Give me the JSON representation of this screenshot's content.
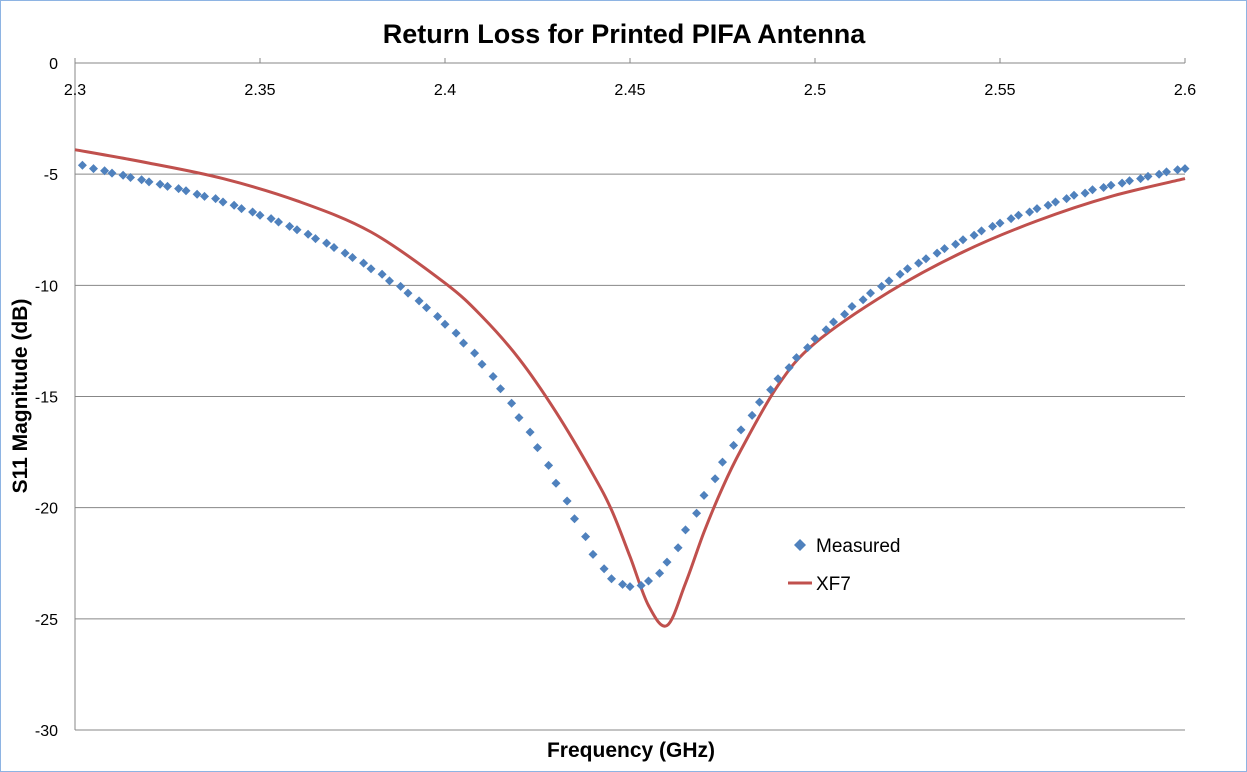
{
  "chart_data": {
    "type": "scatter",
    "title": "Return Loss for Printed PIFA Antenna",
    "xlabel": "Frequency (GHz)",
    "ylabel": "S11 Magnitude (dB)",
    "xlim": [
      2.3,
      2.6
    ],
    "ylim": [
      -30,
      0
    ],
    "x_ticks": [
      2.3,
      2.35,
      2.4,
      2.45,
      2.5,
      2.55,
      2.6
    ],
    "x_tick_labels": [
      "2.3",
      "2.35",
      "2.4",
      "2.45",
      "2.5",
      "2.55",
      "2.6"
    ],
    "y_ticks": [
      0,
      -5,
      -10,
      -15,
      -20,
      -25,
      -30
    ],
    "y_tick_labels": [
      "0",
      "-5",
      "-10",
      "-15",
      "-20",
      "-25",
      "-30"
    ],
    "x_axis_position": "top",
    "grid": "horizontal",
    "legend_position": "right",
    "series": [
      {
        "name": "Measured",
        "kind": "scatter",
        "marker": "diamond",
        "color": "#4f81bd",
        "x": [
          2.302,
          2.305,
          2.308,
          2.31,
          2.313,
          2.315,
          2.318,
          2.32,
          2.323,
          2.325,
          2.328,
          2.33,
          2.333,
          2.335,
          2.338,
          2.34,
          2.343,
          2.345,
          2.348,
          2.35,
          2.353,
          2.355,
          2.358,
          2.36,
          2.363,
          2.365,
          2.368,
          2.37,
          2.373,
          2.375,
          2.378,
          2.38,
          2.383,
          2.385,
          2.388,
          2.39,
          2.393,
          2.395,
          2.398,
          2.4,
          2.403,
          2.405,
          2.408,
          2.41,
          2.413,
          2.415,
          2.418,
          2.42,
          2.423,
          2.425,
          2.428,
          2.43,
          2.433,
          2.435,
          2.438,
          2.44,
          2.443,
          2.445,
          2.448,
          2.45,
          2.453,
          2.455,
          2.458,
          2.46,
          2.463,
          2.465,
          2.468,
          2.47,
          2.473,
          2.475,
          2.478,
          2.48,
          2.483,
          2.485,
          2.488,
          2.49,
          2.493,
          2.495,
          2.498,
          2.5,
          2.503,
          2.505,
          2.508,
          2.51,
          2.513,
          2.515,
          2.518,
          2.52,
          2.523,
          2.525,
          2.528,
          2.53,
          2.533,
          2.535,
          2.538,
          2.54,
          2.543,
          2.545,
          2.548,
          2.55,
          2.553,
          2.555,
          2.558,
          2.56,
          2.563,
          2.565,
          2.568,
          2.57,
          2.573,
          2.575,
          2.578,
          2.58,
          2.583,
          2.585,
          2.588,
          2.59,
          2.593,
          2.595,
          2.598,
          2.6
        ],
        "y": [
          -4.6,
          -4.75,
          -4.85,
          -4.95,
          -5.05,
          -5.15,
          -5.25,
          -5.35,
          -5.45,
          -5.55,
          -5.65,
          -5.75,
          -5.9,
          -6.0,
          -6.1,
          -6.25,
          -6.4,
          -6.55,
          -6.7,
          -6.85,
          -7.0,
          -7.15,
          -7.35,
          -7.5,
          -7.7,
          -7.9,
          -8.1,
          -8.3,
          -8.55,
          -8.75,
          -9.0,
          -9.25,
          -9.5,
          -9.8,
          -10.05,
          -10.35,
          -10.7,
          -11.0,
          -11.4,
          -11.75,
          -12.15,
          -12.6,
          -13.05,
          -13.55,
          -14.1,
          -14.65,
          -15.3,
          -15.95,
          -16.6,
          -17.3,
          -18.1,
          -18.9,
          -19.7,
          -20.5,
          -21.3,
          -22.1,
          -22.75,
          -23.2,
          -23.45,
          -23.55,
          -23.5,
          -23.3,
          -22.95,
          -22.45,
          -21.8,
          -21.0,
          -20.25,
          -19.45,
          -18.7,
          -17.95,
          -17.2,
          -16.5,
          -15.85,
          -15.25,
          -14.7,
          -14.2,
          -13.7,
          -13.25,
          -12.8,
          -12.4,
          -12.0,
          -11.65,
          -11.3,
          -10.95,
          -10.65,
          -10.35,
          -10.05,
          -9.8,
          -9.5,
          -9.25,
          -9.0,
          -8.8,
          -8.55,
          -8.35,
          -8.15,
          -7.95,
          -7.75,
          -7.55,
          -7.35,
          -7.2,
          -7.0,
          -6.85,
          -6.7,
          -6.55,
          -6.4,
          -6.25,
          -6.1,
          -5.95,
          -5.85,
          -5.7,
          -5.6,
          -5.5,
          -5.4,
          -5.3,
          -5.2,
          -5.1,
          -5.0,
          -4.9,
          -4.8,
          -4.75
        ]
      },
      {
        "name": "XF7",
        "kind": "line",
        "color": "#c0504d",
        "x": [
          2.3,
          2.32,
          2.34,
          2.36,
          2.38,
          2.4,
          2.41,
          2.42,
          2.43,
          2.44,
          2.445,
          2.45,
          2.455,
          2.46,
          2.465,
          2.47,
          2.475,
          2.48,
          2.49,
          2.5,
          2.52,
          2.54,
          2.56,
          2.58,
          2.6
        ],
        "y": [
          -3.9,
          -4.5,
          -5.2,
          -6.2,
          -7.6,
          -9.9,
          -11.4,
          -13.3,
          -15.7,
          -18.5,
          -20.1,
          -22.2,
          -24.4,
          -25.3,
          -23.4,
          -21.1,
          -19.1,
          -17.4,
          -14.5,
          -12.6,
          -10.3,
          -8.5,
          -7.1,
          -6.0,
          -5.2
        ]
      }
    ]
  }
}
